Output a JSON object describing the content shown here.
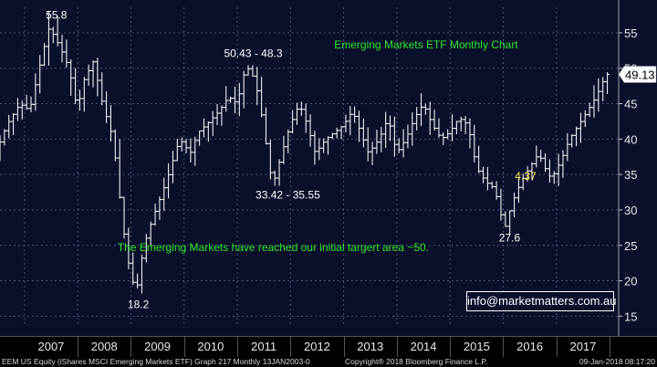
{
  "chart_data": {
    "type": "ohlc",
    "title": "Emerging Markets ETF Monthly Chart",
    "y_ticks": [
      15,
      20,
      25,
      30,
      35,
      40,
      45,
      50,
      55
    ],
    "ylim": [
      13.5,
      58.6
    ],
    "x_ticks": [
      "2007",
      "2008",
      "2009",
      "2010",
      "2011",
      "2012",
      "2013",
      "2014",
      "2015",
      "2016",
      "2017"
    ],
    "xlim": [
      2006.54,
      2018.17
    ],
    "last_price": "49.13",
    "colors": {
      "background": "#0a0f2a",
      "bars": "#ffffff",
      "annotation_green": "#2eea2e",
      "annotation_yellow": "#ffe94a",
      "annotation_white": "#ffffff"
    },
    "annotations": {
      "high_2007": "55.8",
      "low_2008": "18.2",
      "range_2011_high": "50.43 - 48.3",
      "range_2011_low": "33.42 - 35.55",
      "low_2016": "27.6",
      "level_2016": "4.37",
      "note": "The Emerging Markets have reached our initial targert area ~50."
    },
    "keypoints": [
      {
        "t": 2006.54,
        "v": 38
      },
      {
        "t": 2006.75,
        "v": 42
      },
      {
        "t": 2007.0,
        "v": 45
      },
      {
        "t": 2007.18,
        "v": 44
      },
      {
        "t": 2007.42,
        "v": 52
      },
      {
        "t": 2007.55,
        "v": 55.8
      },
      {
        "t": 2007.75,
        "v": 53
      },
      {
        "t": 2007.92,
        "v": 50
      },
      {
        "t": 2008.08,
        "v": 44
      },
      {
        "t": 2008.18,
        "v": 48
      },
      {
        "t": 2008.38,
        "v": 51
      },
      {
        "t": 2008.55,
        "v": 45
      },
      {
        "t": 2008.75,
        "v": 40
      },
      {
        "t": 2008.9,
        "v": 30
      },
      {
        "t": 2009.0,
        "v": 24
      },
      {
        "t": 2009.08,
        "v": 21
      },
      {
        "t": 2009.18,
        "v": 18.2
      },
      {
        "t": 2009.33,
        "v": 25
      },
      {
        "t": 2009.5,
        "v": 29
      },
      {
        "t": 2009.75,
        "v": 34
      },
      {
        "t": 2010.0,
        "v": 40
      },
      {
        "t": 2010.2,
        "v": 38
      },
      {
        "t": 2010.35,
        "v": 41
      },
      {
        "t": 2010.5,
        "v": 42
      },
      {
        "t": 2010.75,
        "v": 44
      },
      {
        "t": 2010.92,
        "v": 46
      },
      {
        "t": 2011.08,
        "v": 45
      },
      {
        "t": 2011.25,
        "v": 50.43
      },
      {
        "t": 2011.42,
        "v": 48.3
      },
      {
        "t": 2011.55,
        "v": 43
      },
      {
        "t": 2011.7,
        "v": 35.55
      },
      {
        "t": 2011.75,
        "v": 33.42
      },
      {
        "t": 2011.92,
        "v": 38
      },
      {
        "t": 2012.08,
        "v": 42
      },
      {
        "t": 2012.25,
        "v": 45
      },
      {
        "t": 2012.4,
        "v": 42
      },
      {
        "t": 2012.55,
        "v": 38
      },
      {
        "t": 2012.75,
        "v": 40
      },
      {
        "t": 2012.92,
        "v": 41
      },
      {
        "t": 2013.08,
        "v": 42
      },
      {
        "t": 2013.25,
        "v": 44
      },
      {
        "t": 2013.4,
        "v": 41
      },
      {
        "t": 2013.55,
        "v": 38
      },
      {
        "t": 2013.75,
        "v": 40
      },
      {
        "t": 2013.92,
        "v": 43
      },
      {
        "t": 2014.08,
        "v": 38
      },
      {
        "t": 2014.25,
        "v": 40
      },
      {
        "t": 2014.42,
        "v": 43
      },
      {
        "t": 2014.58,
        "v": 45
      },
      {
        "t": 2014.75,
        "v": 42
      },
      {
        "t": 2014.92,
        "v": 40
      },
      {
        "t": 2015.08,
        "v": 41
      },
      {
        "t": 2015.25,
        "v": 43
      },
      {
        "t": 2015.42,
        "v": 42
      },
      {
        "t": 2015.58,
        "v": 36
      },
      {
        "t": 2015.75,
        "v": 34
      },
      {
        "t": 2015.92,
        "v": 33
      },
      {
        "t": 2016.05,
        "v": 29
      },
      {
        "t": 2016.12,
        "v": 27.6
      },
      {
        "t": 2016.25,
        "v": 31
      },
      {
        "t": 2016.42,
        "v": 34
      },
      {
        "t": 2016.58,
        "v": 36
      },
      {
        "t": 2016.75,
        "v": 38
      },
      {
        "t": 2016.92,
        "v": 35
      },
      {
        "t": 2017.0,
        "v": 34.5
      },
      {
        "t": 2017.17,
        "v": 37
      },
      {
        "t": 2017.33,
        "v": 40
      },
      {
        "t": 2017.5,
        "v": 42
      },
      {
        "t": 2017.67,
        "v": 44
      },
      {
        "t": 2017.83,
        "v": 46
      },
      {
        "t": 2017.95,
        "v": 48
      },
      {
        "t": 2018.03,
        "v": 49.13
      }
    ]
  },
  "footer": {
    "left": "EEM US Equity (iShares MSCI Emerging Markets ETF) Graph 217  Monthly 13JAN2003-0",
    "center": "Copyright® 2018 Bloomberg Finance L.P.",
    "right": "09-Jan-2018 08:17:20"
  },
  "email": "info@marketmatters.com.au"
}
